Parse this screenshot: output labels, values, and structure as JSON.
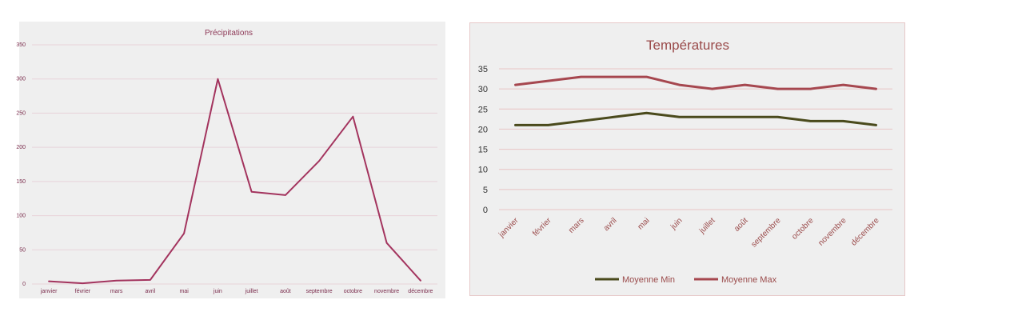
{
  "chart_data": [
    {
      "type": "line",
      "title": "Précipitations",
      "xlabel": "",
      "ylabel": "",
      "categories": [
        "janvier",
        "février",
        "mars",
        "avril",
        "mai",
        "juin",
        "juillet",
        "août",
        "septembre",
        "octobre",
        "novembre",
        "décembre"
      ],
      "ylim": [
        0,
        350
      ],
      "yticks": [
        "0",
        "50",
        "100",
        "150",
        "200",
        "250",
        "300",
        "350"
      ],
      "grid": true,
      "series": [
        {
          "values": [
            4,
            1,
            5,
            6,
            74,
            300,
            135,
            130,
            180,
            245,
            60,
            5
          ],
          "color": "#a3345e"
        }
      ]
    },
    {
      "type": "line",
      "title": "Températures",
      "xlabel": "",
      "ylabel": "",
      "categories": [
        "janvier",
        "février",
        "mars",
        "avril",
        "mai",
        "juin",
        "juillet",
        "août",
        "septembre",
        "octobre",
        "novembre",
        "décembre"
      ],
      "ylim": [
        0,
        35
      ],
      "yticks": [
        "0",
        "5",
        "10",
        "15",
        "20",
        "25",
        "30",
        "35"
      ],
      "grid": true,
      "legend": "bottom",
      "series": [
        {
          "name": "Moyenne Min",
          "values": [
            21,
            21,
            22,
            23,
            24,
            23,
            23,
            23,
            23,
            22,
            22,
            21
          ],
          "color": "#4a4a1c"
        },
        {
          "name": "Moyenne Max",
          "values": [
            31,
            32,
            33,
            33,
            33,
            31,
            30,
            31,
            30,
            30,
            31,
            30
          ],
          "color": "#a6474f"
        }
      ]
    }
  ]
}
